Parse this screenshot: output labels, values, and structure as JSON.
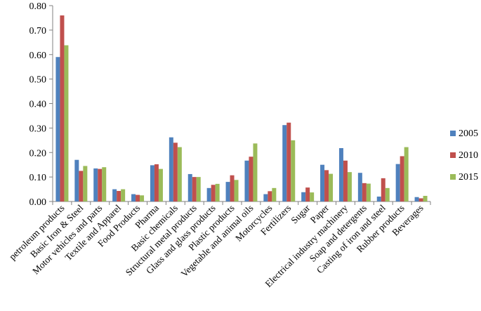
{
  "chart_data": {
    "type": "bar",
    "categories": [
      "petroleum products",
      "Basic Iron & Steel",
      "Motor vehicles and parts",
      "Textile and Apparel",
      "Food Products",
      "Pharma",
      "Basic chemicals",
      "Structural metal products",
      "Glass and glass products",
      "Plastic products",
      "Vegetable and animal oils",
      "Motorcycles",
      "Fertilizers",
      "Sugar",
      "Paper",
      "Electrical industry machinery",
      "Soap and detergents",
      "Casting of iron and steel",
      "Rubber products",
      "Beverages"
    ],
    "series": [
      {
        "name": "2005",
        "color": "#4F81BD",
        "values": [
          0.59,
          0.17,
          0.135,
          0.05,
          0.03,
          0.148,
          0.262,
          0.112,
          0.055,
          0.08,
          0.167,
          0.03,
          0.312,
          0.038,
          0.15,
          0.218,
          0.117,
          0.02,
          0.153,
          0.018
        ]
      },
      {
        "name": "2010",
        "color": "#C0504D",
        "values": [
          0.76,
          0.125,
          0.133,
          0.043,
          0.027,
          0.152,
          0.24,
          0.1,
          0.068,
          0.107,
          0.183,
          0.042,
          0.322,
          0.057,
          0.128,
          0.167,
          0.075,
          0.095,
          0.185,
          0.013
        ]
      },
      {
        "name": "2015",
        "color": "#9BBB59",
        "values": [
          0.638,
          0.145,
          0.14,
          0.05,
          0.025,
          0.133,
          0.222,
          0.1,
          0.072,
          0.088,
          0.237,
          0.055,
          0.25,
          0.037,
          0.113,
          0.12,
          0.073,
          0.055,
          0.222,
          0.023
        ]
      }
    ],
    "ylim": [
      0,
      0.8
    ],
    "yticks": [
      "0.00",
      "0.10",
      "0.20",
      "0.30",
      "0.40",
      "0.50",
      "0.60",
      "0.70",
      "0.80"
    ],
    "grid": false,
    "legend": "right",
    "title": "",
    "xlabel": "",
    "ylabel": ""
  }
}
